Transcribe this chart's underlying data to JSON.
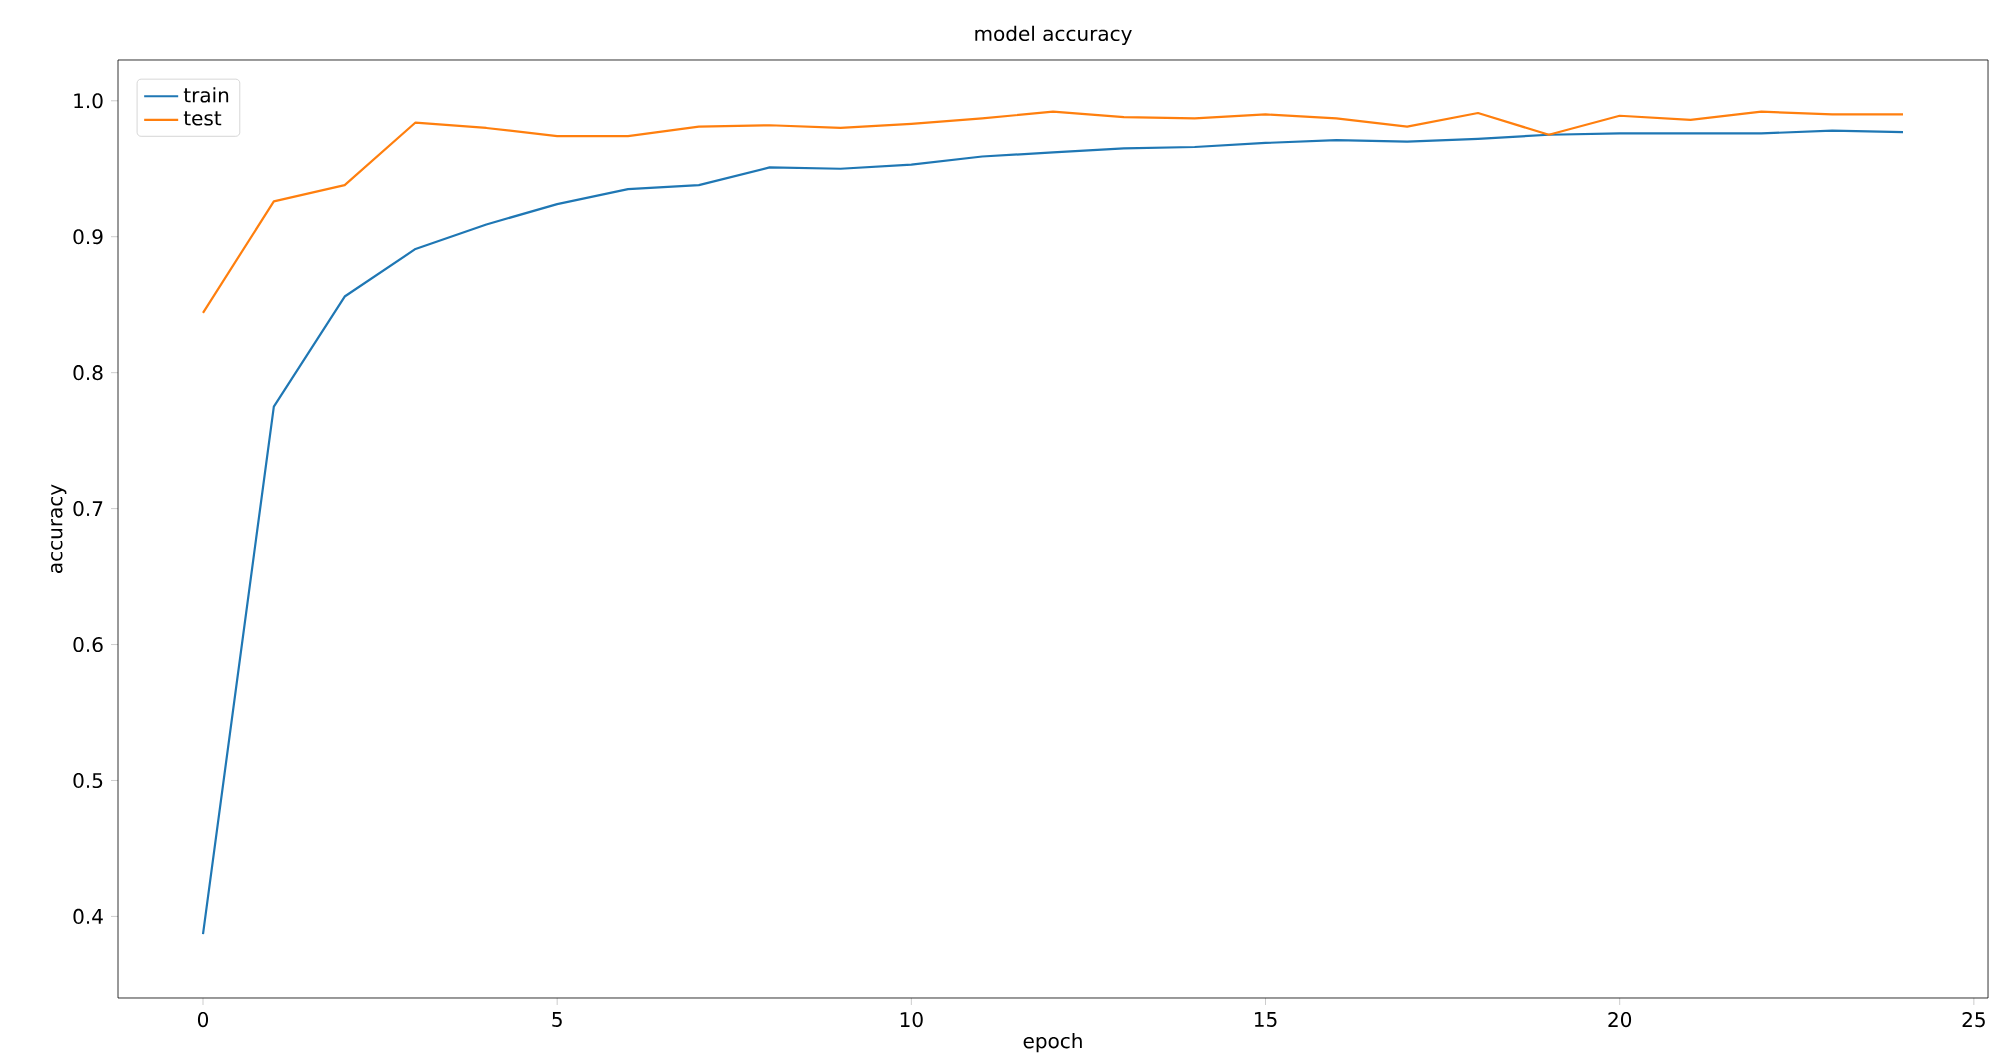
{
  "chart_data": {
    "type": "line",
    "title": "model accuracy",
    "xlabel": "epoch",
    "ylabel": "accuracy",
    "x": [
      0,
      1,
      2,
      3,
      4,
      5,
      6,
      7,
      8,
      9,
      10,
      11,
      12,
      13,
      14,
      15,
      16,
      17,
      18,
      19,
      20,
      21,
      22,
      23,
      24
    ],
    "series": [
      {
        "name": "train",
        "color": "#1f77b4",
        "values": [
          0.387,
          0.775,
          0.856,
          0.891,
          0.909,
          0.924,
          0.935,
          0.938,
          0.951,
          0.95,
          0.953,
          0.959,
          0.962,
          0.965,
          0.966,
          0.969,
          0.971,
          0.97,
          0.972,
          0.975,
          0.976,
          0.976,
          0.976,
          0.978,
          0.977
        ]
      },
      {
        "name": "test",
        "color": "#ff7f0e",
        "values": [
          0.844,
          0.926,
          0.938,
          0.984,
          0.98,
          0.974,
          0.974,
          0.981,
          0.982,
          0.98,
          0.983,
          0.987,
          0.992,
          0.988,
          0.987,
          0.99,
          0.987,
          0.981,
          0.991,
          0.975,
          0.989,
          0.986,
          0.992,
          0.99,
          0.99
        ]
      }
    ],
    "xlim": [
      -1.2,
      25.2
    ],
    "ylim": [
      0.34,
      1.03
    ],
    "xticks": [
      0,
      5,
      10,
      15,
      20,
      25
    ],
    "yticks": [
      {
        "value": 0.4,
        "label": "0.4"
      },
      {
        "value": 0.5,
        "label": "0.5"
      },
      {
        "value": 0.6,
        "label": "0.6"
      },
      {
        "value": 0.7,
        "label": "0.7"
      },
      {
        "value": 0.8,
        "label": "0.8"
      },
      {
        "value": 0.9,
        "label": "0.9"
      },
      {
        "value": 1.0,
        "label": "1.0"
      }
    ],
    "legend": "top left",
    "grid": false,
    "marker": "none",
    "line_style": "solid"
  }
}
